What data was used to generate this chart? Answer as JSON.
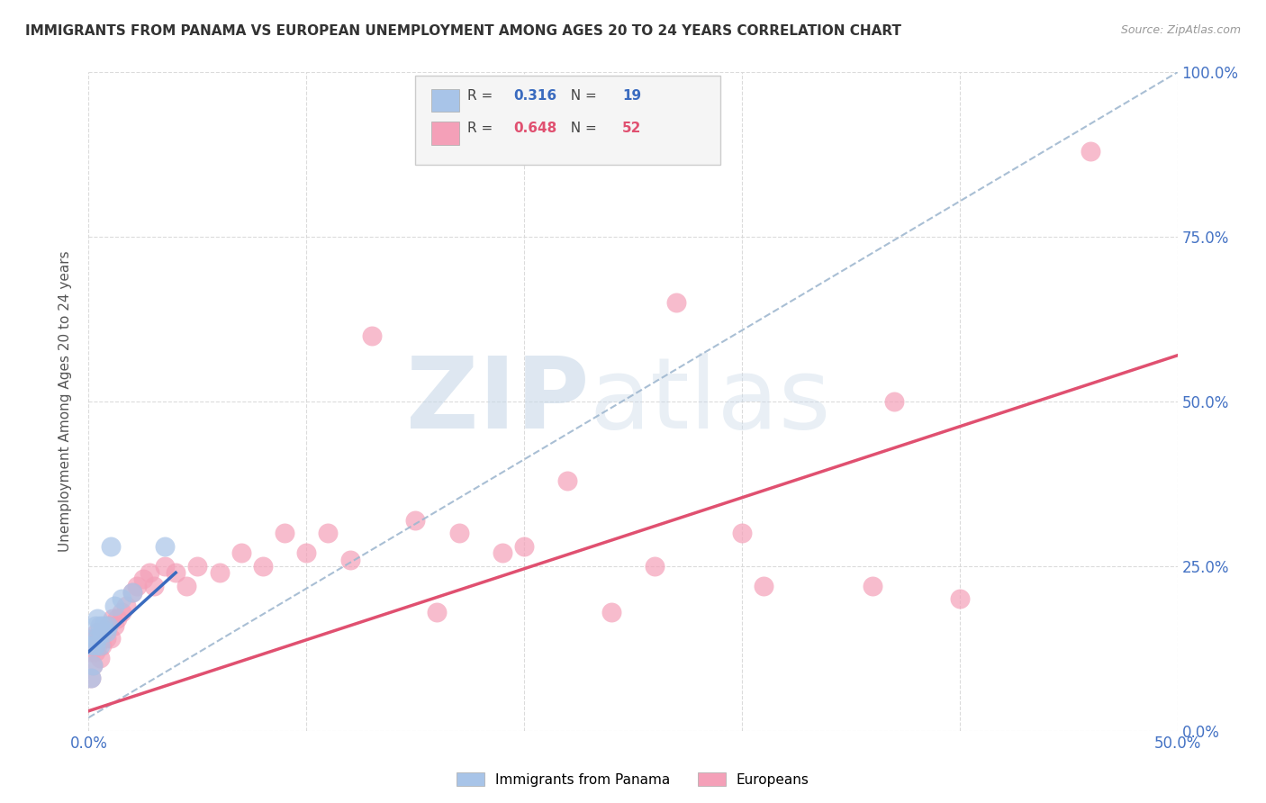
{
  "title": "IMMIGRANTS FROM PANAMA VS EUROPEAN UNEMPLOYMENT AMONG AGES 20 TO 24 YEARS CORRELATION CHART",
  "source": "Source: ZipAtlas.com",
  "ylabel": "Unemployment Among Ages 20 to 24 years",
  "xlim": [
    0.0,
    0.5
  ],
  "ylim": [
    0.0,
    1.0
  ],
  "xtick_vals": [
    0.0,
    0.5
  ],
  "xtick_labels": [
    "0.0%",
    "50.0%"
  ],
  "ytick_vals": [
    0.0,
    0.25,
    0.5,
    0.75,
    1.0
  ],
  "ytick_labels": [
    "0.0%",
    "25.0%",
    "50.0%",
    "75.0%",
    "100.0%"
  ],
  "panama_R": "0.316",
  "panama_N": "19",
  "european_R": "0.648",
  "european_N": "52",
  "panama_color": "#a8c4e8",
  "european_color": "#f4a0b8",
  "panama_line_color": "#3a6bbf",
  "european_line_color": "#e05070",
  "dashed_line_color": "#a0b8d0",
  "watermark_zip_color": "#c8d8e8",
  "watermark_atlas_color": "#c8d8e8",
  "panama_points_x": [
    0.001,
    0.001,
    0.002,
    0.002,
    0.003,
    0.003,
    0.004,
    0.004,
    0.005,
    0.005,
    0.006,
    0.007,
    0.008,
    0.009,
    0.01,
    0.012,
    0.015,
    0.02,
    0.035
  ],
  "panama_points_y": [
    0.08,
    0.13,
    0.1,
    0.14,
    0.13,
    0.16,
    0.14,
    0.17,
    0.13,
    0.16,
    0.15,
    0.16,
    0.15,
    0.16,
    0.28,
    0.19,
    0.2,
    0.21,
    0.28
  ],
  "european_points_x": [
    0.001,
    0.001,
    0.002,
    0.002,
    0.003,
    0.003,
    0.004,
    0.004,
    0.005,
    0.005,
    0.006,
    0.007,
    0.008,
    0.009,
    0.01,
    0.011,
    0.012,
    0.013,
    0.015,
    0.017,
    0.02,
    0.022,
    0.025,
    0.028,
    0.03,
    0.035,
    0.04,
    0.045,
    0.05,
    0.06,
    0.07,
    0.08,
    0.09,
    0.1,
    0.11,
    0.12,
    0.13,
    0.15,
    0.16,
    0.17,
    0.19,
    0.2,
    0.22,
    0.24,
    0.26,
    0.27,
    0.3,
    0.31,
    0.36,
    0.37,
    0.4,
    0.46
  ],
  "european_points_y": [
    0.08,
    0.12,
    0.1,
    0.13,
    0.12,
    0.14,
    0.13,
    0.15,
    0.11,
    0.14,
    0.13,
    0.15,
    0.14,
    0.16,
    0.14,
    0.17,
    0.16,
    0.17,
    0.18,
    0.19,
    0.21,
    0.22,
    0.23,
    0.24,
    0.22,
    0.25,
    0.24,
    0.22,
    0.25,
    0.24,
    0.27,
    0.25,
    0.3,
    0.27,
    0.3,
    0.26,
    0.6,
    0.32,
    0.18,
    0.3,
    0.27,
    0.28,
    0.38,
    0.18,
    0.25,
    0.65,
    0.3,
    0.22,
    0.22,
    0.5,
    0.2,
    0.88
  ],
  "panama_trend_x": [
    0.0,
    0.04
  ],
  "panama_trend_y": [
    0.12,
    0.24
  ],
  "european_trend_x": [
    0.0,
    0.5
  ],
  "european_trend_y": [
    0.03,
    0.57
  ],
  "dashed_trend_x": [
    0.0,
    0.5
  ],
  "dashed_trend_y": [
    0.02,
    1.0
  ],
  "background_color": "#ffffff",
  "grid_color": "#d8d8d8",
  "axis_color": "#4472c4",
  "tick_color": "#4472c4",
  "legend_bg": "#f5f5f5",
  "legend_edge": "#cccccc"
}
